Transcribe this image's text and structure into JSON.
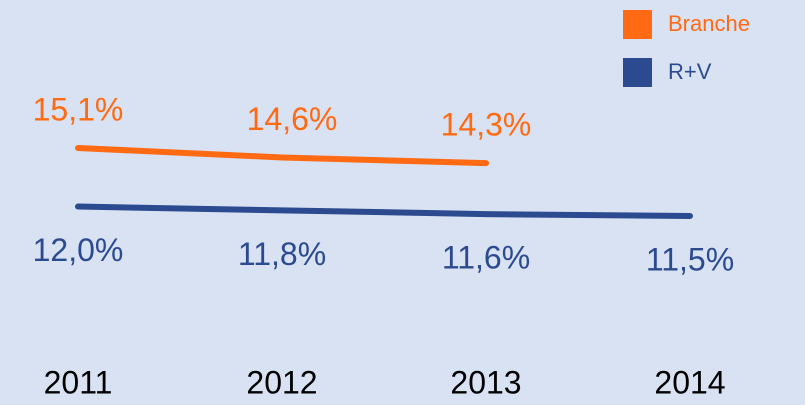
{
  "chart_data": {
    "type": "line",
    "categories": [
      "2011",
      "2012",
      "2013",
      "2014"
    ],
    "series": [
      {
        "name": "Branche",
        "color": "#ff6a13",
        "values": [
          15.1,
          14.6,
          14.3,
          null
        ],
        "value_labels": [
          "15,1%",
          "14,6%",
          "14,3%",
          null
        ]
      },
      {
        "name": "R+V",
        "color": "#2b4a8f",
        "values": [
          12.0,
          11.8,
          11.6,
          11.5
        ],
        "value_labels": [
          "12,0%",
          "11,8%",
          "11,6%",
          "11,5%"
        ]
      }
    ],
    "legend": "top-right"
  }
}
